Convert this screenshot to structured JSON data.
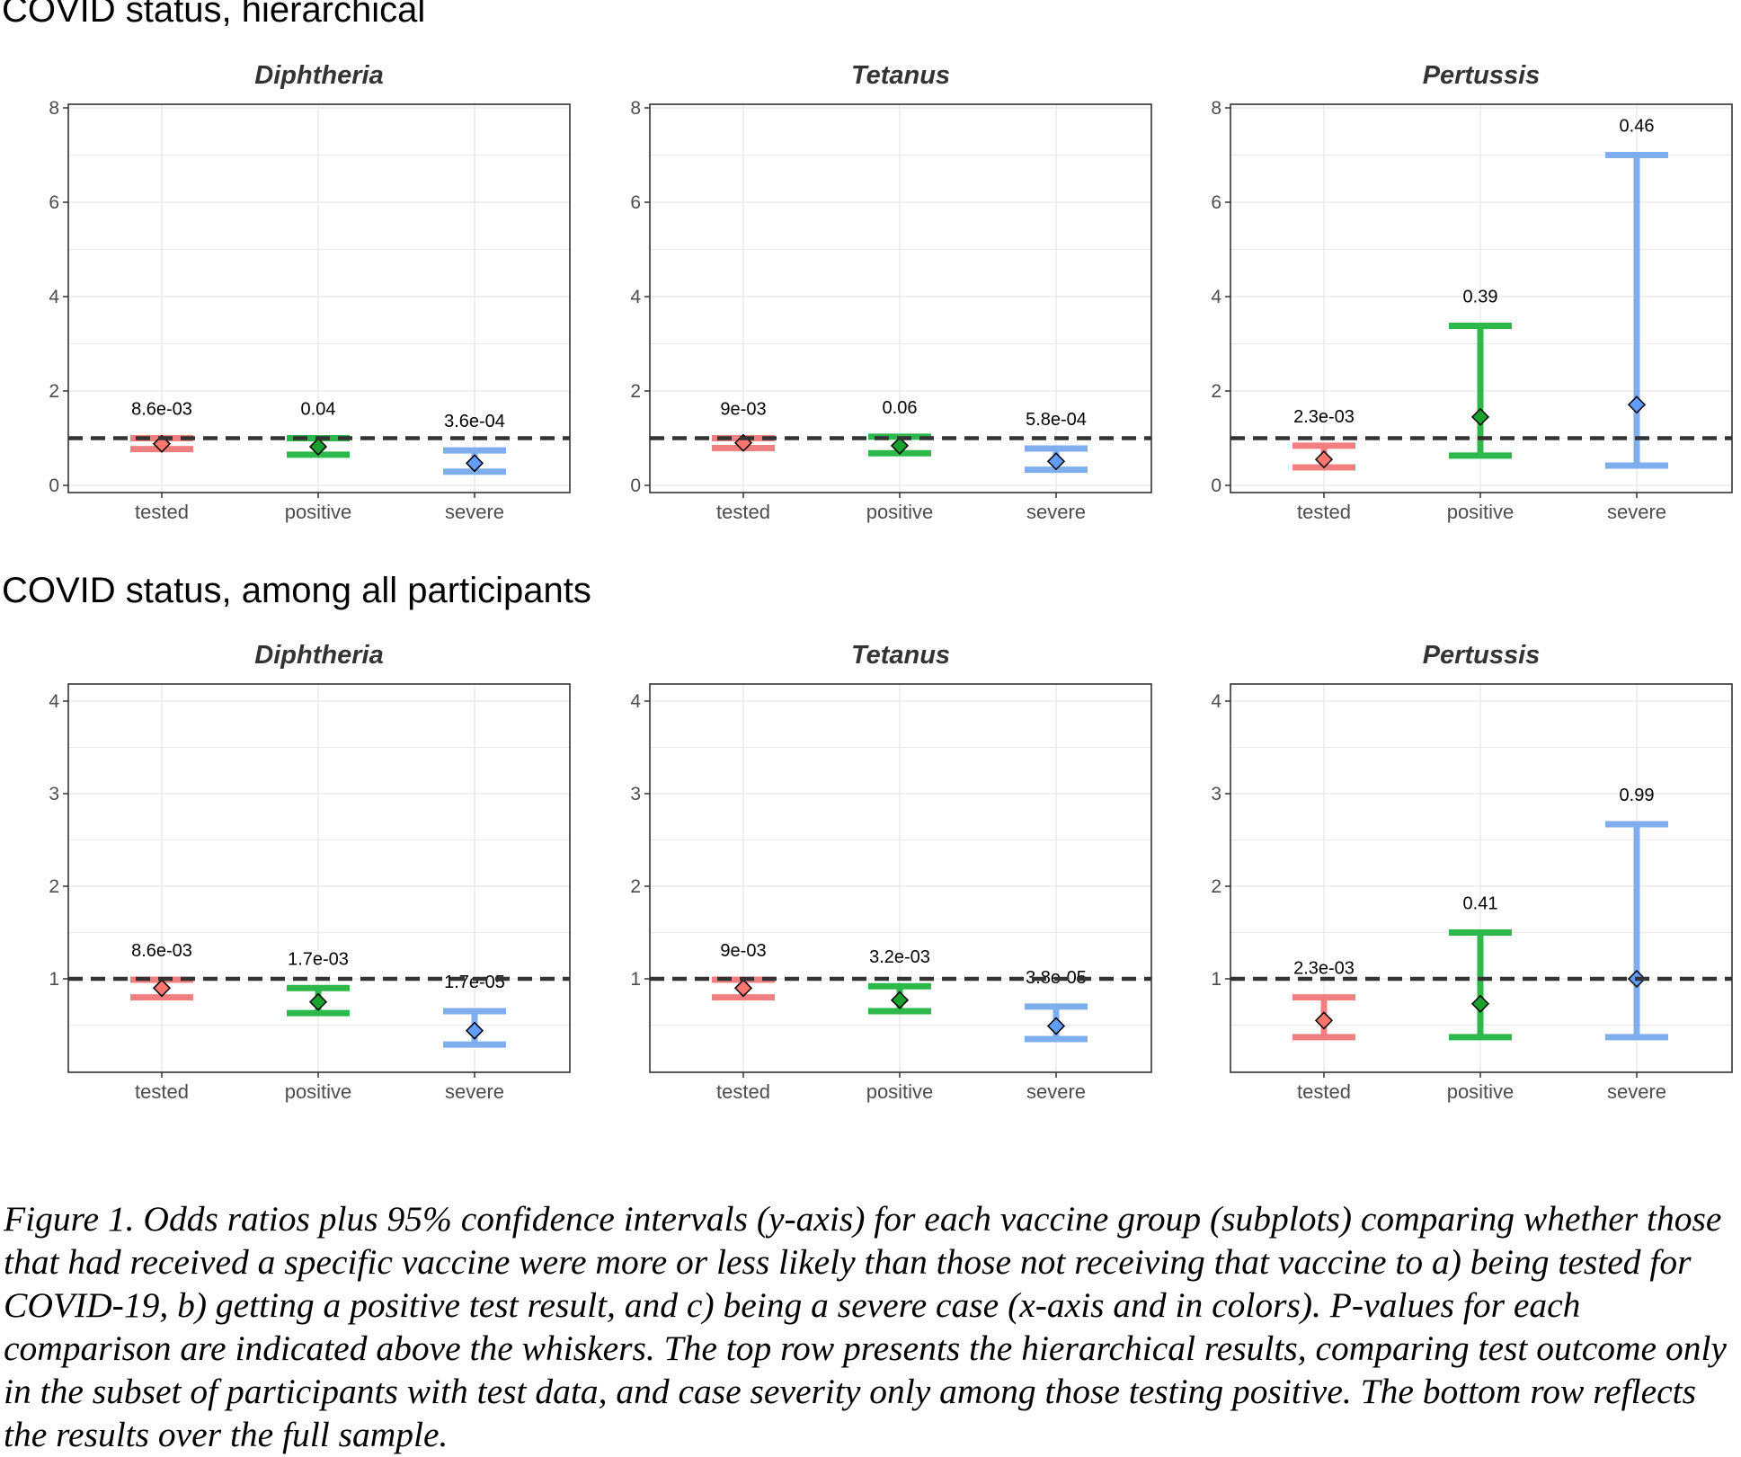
{
  "colors": {
    "tested": "#F08080",
    "positive": "#2DB84B",
    "severe": "#7FAEEF",
    "tested_marker": "#F8766D",
    "positive_marker": "#1AA02E",
    "severe_marker": "#619CFF",
    "reference_line": "#333333",
    "grid": "#EBEBEB"
  },
  "chart_data": [
    {
      "type": "errorbar",
      "row_title": "COVID status, hierarchical",
      "title": "Diphtheria",
      "categories": [
        "tested",
        "positive",
        "severe"
      ],
      "values": [
        0.88,
        0.82,
        0.47
      ],
      "ci_low": [
        0.77,
        0.65,
        0.29
      ],
      "ci_high": [
        1.0,
        1.0,
        0.74
      ],
      "p_values": [
        "8.6e-03",
        "0.04",
        "3.6e-04"
      ],
      "reference_line": 1,
      "ylim": [
        0,
        8
      ],
      "yticks": [
        0,
        2,
        4,
        6,
        8
      ]
    },
    {
      "type": "errorbar",
      "title": "Tetanus",
      "categories": [
        "tested",
        "positive",
        "severe"
      ],
      "values": [
        0.9,
        0.84,
        0.51
      ],
      "ci_low": [
        0.79,
        0.68,
        0.33
      ],
      "ci_high": [
        1.0,
        1.03,
        0.78
      ],
      "p_values": [
        "9e-03",
        "0.06",
        "5.8e-04"
      ],
      "reference_line": 1,
      "ylim": [
        0,
        8
      ],
      "yticks": [
        0,
        2,
        4,
        6,
        8
      ]
    },
    {
      "type": "errorbar",
      "title": "Pertussis",
      "categories": [
        "tested",
        "positive",
        "severe"
      ],
      "values": [
        0.55,
        1.45,
        1.71
      ],
      "ci_low": [
        0.38,
        0.63,
        0.42
      ],
      "ci_high": [
        0.84,
        3.38,
        7.0
      ],
      "p_values": [
        "2.3e-03",
        "0.39",
        "0.46"
      ],
      "reference_line": 1,
      "ylim": [
        0,
        8
      ],
      "yticks": [
        0,
        2,
        4,
        6,
        8
      ]
    },
    {
      "type": "errorbar",
      "row_title": "COVID status, among all participants",
      "title": "Diphtheria",
      "categories": [
        "tested",
        "positive",
        "severe"
      ],
      "values": [
        0.9,
        0.75,
        0.44
      ],
      "ci_low": [
        0.8,
        0.63,
        0.29
      ],
      "ci_high": [
        0.99,
        0.9,
        0.65
      ],
      "p_values": [
        "8.6e-03",
        "1.7e-03",
        "1.7e-05"
      ],
      "reference_line": 1,
      "ylim": [
        0,
        4
      ],
      "yticks": [
        1,
        2,
        3,
        4
      ]
    },
    {
      "type": "errorbar",
      "title": "Tetanus",
      "categories": [
        "tested",
        "positive",
        "severe"
      ],
      "values": [
        0.9,
        0.77,
        0.49
      ],
      "ci_low": [
        0.8,
        0.65,
        0.35
      ],
      "ci_high": [
        0.99,
        0.92,
        0.7
      ],
      "p_values": [
        "9e-03",
        "3.2e-03",
        "3.8e-05"
      ],
      "reference_line": 1,
      "ylim": [
        0,
        4
      ],
      "yticks": [
        1,
        2,
        3,
        4
      ]
    },
    {
      "type": "errorbar",
      "title": "Pertussis",
      "categories": [
        "tested",
        "positive",
        "severe"
      ],
      "values": [
        0.55,
        0.73,
        1.0
      ],
      "ci_low": [
        0.37,
        0.37,
        0.37
      ],
      "ci_high": [
        0.8,
        1.5,
        2.67
      ],
      "p_values": [
        "2.3e-03",
        "0.41",
        "0.99"
      ],
      "reference_line": 1,
      "ylim": [
        0,
        4
      ],
      "yticks": [
        1,
        2,
        3,
        4
      ]
    }
  ],
  "caption": "Figure 1. Odds ratios plus 95% confidence intervals (y-axis) for each vaccine group (subplots) comparing whether those that had received a specific vaccine were more or less likely than those not receiving that vaccine to a) being tested for COVID-19, b) getting a positive test result, and c) being a severe case (x-axis and in colors). P-values for each comparison are indicated above the whiskers. The top row presents the hierarchical results, comparing test outcome only in the subset of participants with test data, and case severity only among those testing positive. The bottom row reflects the results over the full sample."
}
